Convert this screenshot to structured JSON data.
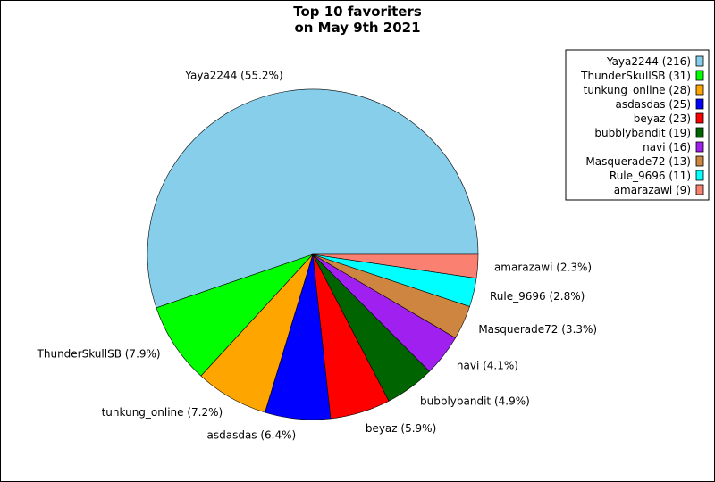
{
  "chart_data": {
    "type": "pie",
    "title_lines": [
      "Top 10 favoriters",
      "on May 9th 2021"
    ],
    "slices": [
      {
        "name": "Yaya2244",
        "value": 216,
        "percent_label": "55.2%",
        "color": "#87ceeb"
      },
      {
        "name": "ThunderSkullSB",
        "value": 31,
        "percent_label": "7.9%",
        "color": "#00ff00"
      },
      {
        "name": "tunkung_online",
        "value": 28,
        "percent_label": "7.2%",
        "color": "#ffa500"
      },
      {
        "name": "asdasdas",
        "value": 25,
        "percent_label": "6.4%",
        "color": "#0000ff"
      },
      {
        "name": "beyaz",
        "value": 23,
        "percent_label": "5.9%",
        "color": "#ff0000"
      },
      {
        "name": "bubblybandit",
        "value": 19,
        "percent_label": "4.9%",
        "color": "#006400"
      },
      {
        "name": "navi",
        "value": 16,
        "percent_label": "4.1%",
        "color": "#a020f0"
      },
      {
        "name": "Masquerade72",
        "value": 13,
        "percent_label": "3.3%",
        "color": "#cd853f"
      },
      {
        "name": "Rule_9696",
        "value": 11,
        "percent_label": "2.8%",
        "color": "#00ffff"
      },
      {
        "name": "amarazawi",
        "value": 9,
        "percent_label": "2.3%",
        "color": "#fa8072"
      }
    ],
    "legend_placement": "top-right",
    "start_angle": "0 degrees (3 o'clock), counter-clockwise"
  }
}
